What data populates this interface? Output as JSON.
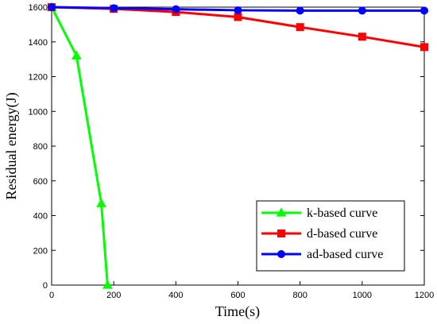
{
  "chart_data": {
    "type": "line",
    "xlabel": "Time(s)",
    "ylabel": "Residual energy(J)",
    "xlim": [
      0,
      1200
    ],
    "ylim": [
      0,
      1600
    ],
    "xticks": [
      0,
      200,
      400,
      600,
      800,
      1000,
      1200
    ],
    "yticks": [
      0,
      200,
      400,
      600,
      800,
      1000,
      1200,
      1400,
      1600
    ],
    "grid": false,
    "legend_position": "bottom-right",
    "series": [
      {
        "name": "k-based curve",
        "color": "#00ff00",
        "marker": "triangle",
        "x": [
          0,
          80,
          160,
          180
        ],
        "y": [
          1600,
          1320,
          470,
          0
        ]
      },
      {
        "name": "d-based curve",
        "color": "#ff0000",
        "marker": "square",
        "x": [
          0,
          200,
          400,
          600,
          800,
          1000,
          1200
        ],
        "y": [
          1600,
          1590,
          1572,
          1543,
          1485,
          1430,
          1370
        ]
      },
      {
        "name": "ad-based curve",
        "color": "#0000ff",
        "marker": "circle",
        "x": [
          0,
          200,
          400,
          600,
          800,
          1000,
          1200
        ],
        "y": [
          1600,
          1594,
          1588,
          1582,
          1580,
          1580,
          1580
        ]
      }
    ]
  }
}
